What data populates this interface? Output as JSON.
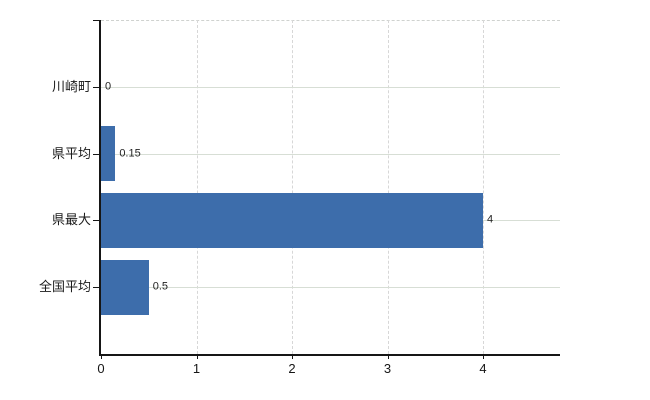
{
  "chart_data": {
    "type": "bar",
    "orientation": "horizontal",
    "title": "",
    "xlabel": "",
    "ylabel": "",
    "categories": [
      "川崎町",
      "県平均",
      "県最大",
      "全国平均"
    ],
    "values": [
      0,
      0.15,
      4,
      0.5
    ],
    "value_labels": [
      "0",
      "0.15",
      "4",
      "0.5"
    ],
    "x_tick_labels": [
      "0",
      "1",
      "2",
      "3",
      "4"
    ],
    "x_tick_values": [
      0,
      1,
      2,
      3,
      4
    ],
    "xlim": [
      0,
      4.8
    ],
    "grid": "on",
    "legend": "none",
    "bar_color": "#3d6dab",
    "axis_color": "#161616",
    "hgrid_color": "#d7ded5",
    "vgrid_color": "#d7d7d7",
    "background_color": "#ffffff"
  }
}
